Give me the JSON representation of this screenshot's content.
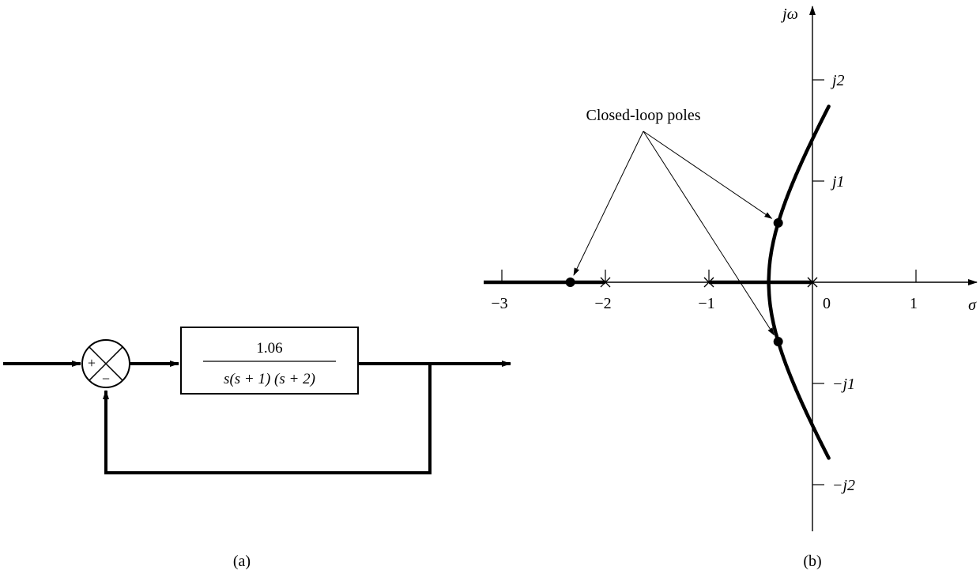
{
  "diagram_a": {
    "caption": "(a)",
    "summing_junction": {
      "plus_sign": "+",
      "minus_sign": "−"
    },
    "block": {
      "numerator": "1.06",
      "denominator": "s(s + 1) (s + 2)"
    }
  },
  "diagram_b": {
    "caption": "(b)",
    "annotation": "Closed-loop poles",
    "axis_labels": {
      "real": "σ",
      "imag": "jω"
    },
    "real_ticks": [
      {
        "value": -3,
        "label": "−3"
      },
      {
        "value": -2,
        "label": "−2"
      },
      {
        "value": -1,
        "label": "−1"
      },
      {
        "value": 0,
        "label": "0"
      },
      {
        "value": 1,
        "label": "1"
      }
    ],
    "imag_ticks": [
      {
        "value": 2,
        "label": "j2"
      },
      {
        "value": 1,
        "label": "j1"
      },
      {
        "value": -1,
        "label": "−j1"
      },
      {
        "value": -2,
        "label": "−j2"
      }
    ],
    "open_loop_poles": [
      0,
      -1,
      -2
    ],
    "closed_loop_poles": [
      {
        "re": -2.3386,
        "im": 0
      },
      {
        "re": -0.3307,
        "im": 0.5864
      },
      {
        "re": -0.3307,
        "im": -0.5864
      }
    ]
  }
}
